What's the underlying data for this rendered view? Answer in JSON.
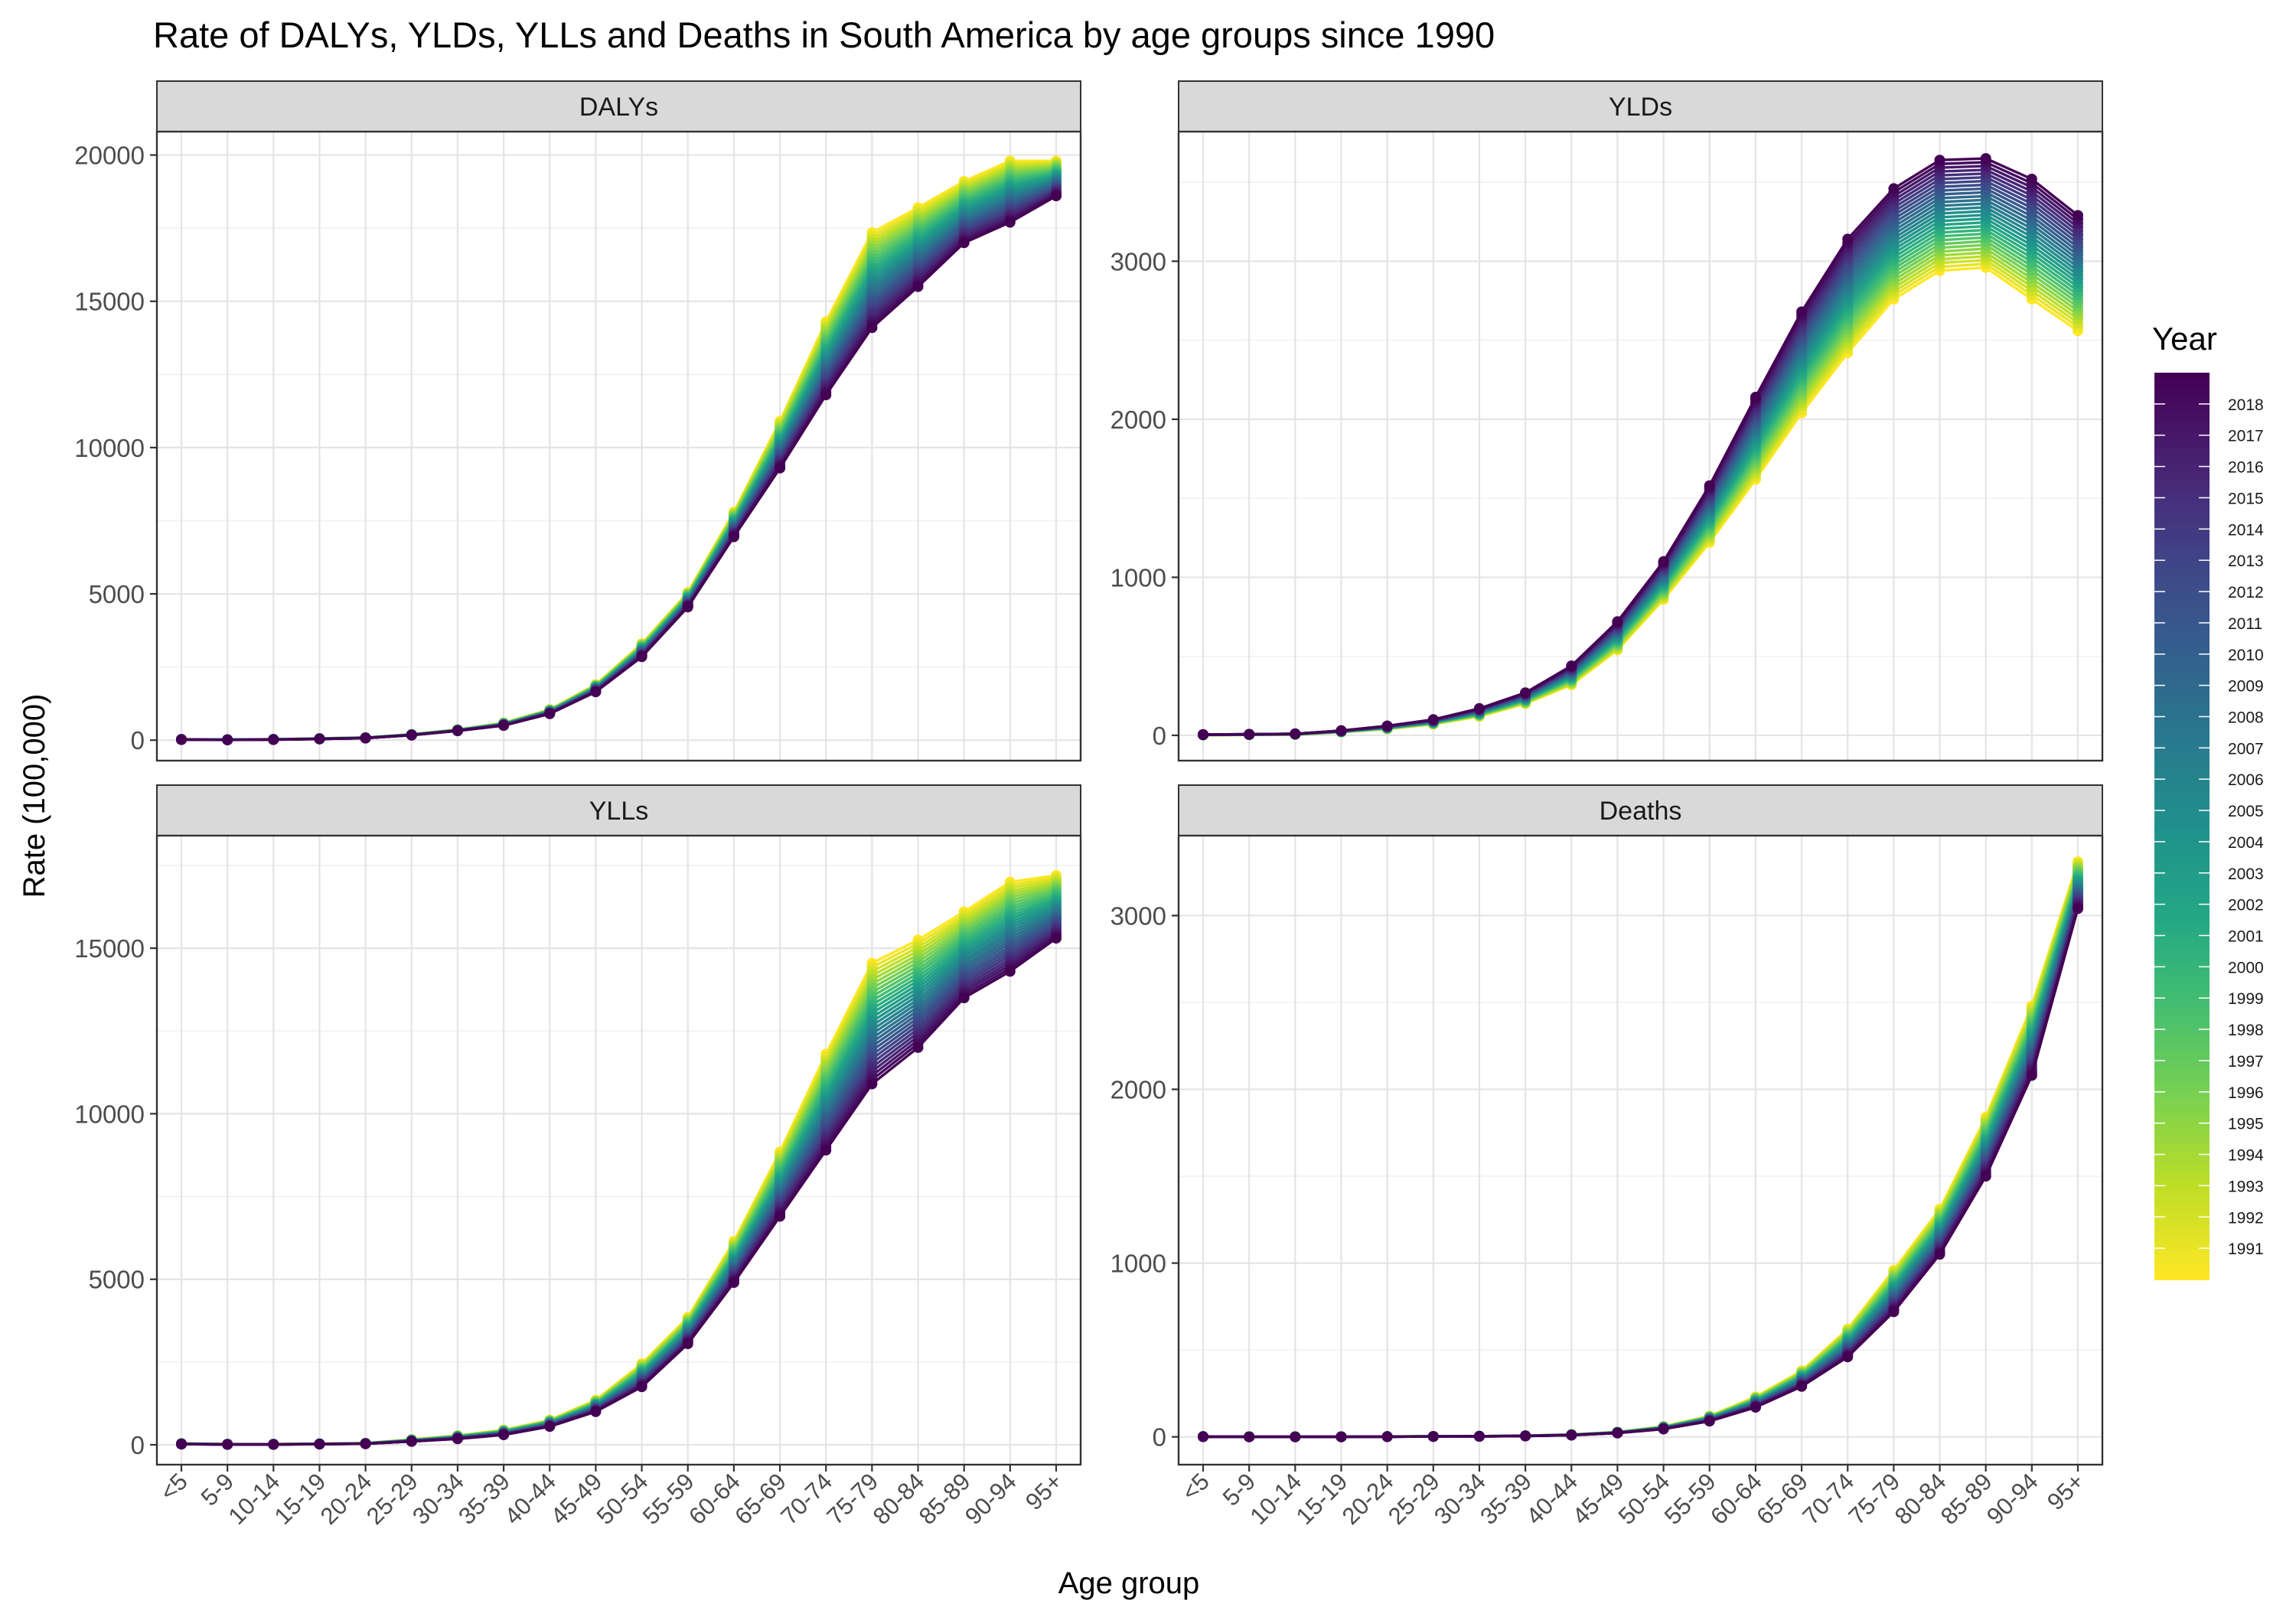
{
  "title": "Rate of DALYs, YLDs, YLLs and Deaths in South America by age groups since 1990",
  "xlabel": "Age group",
  "ylabel": "Rate (100,000)",
  "legend": {
    "title": "Year",
    "labels": [
      "2018",
      "2017",
      "2016",
      "2015",
      "2014",
      "2013",
      "2012",
      "2011",
      "2010",
      "2009",
      "2008",
      "2007",
      "2006",
      "2005",
      "2004",
      "2003",
      "2002",
      "2001",
      "2000",
      "1999",
      "1998",
      "1997",
      "1996",
      "1995",
      "1994",
      "1993",
      "1992",
      "1991"
    ],
    "year_min": 1990,
    "year_max": 2019,
    "placement": "right",
    "colormap": "viridis"
  },
  "chart_data": [
    {
      "panel": "DALYs",
      "type": "line",
      "categories": [
        "<5",
        "5-9",
        "10-14",
        "15-19",
        "20-24",
        "25-29",
        "30-34",
        "35-39",
        "40-44",
        "45-49",
        "50-54",
        "55-59",
        "60-64",
        "65-69",
        "70-74",
        "75-79",
        "80-84",
        "85-89",
        "90-94",
        "95+"
      ],
      "ylim": [
        -700,
        20800
      ],
      "yticks": [
        0,
        5000,
        10000,
        15000,
        20000
      ],
      "year_first": 1990,
      "year_last": 2019,
      "first_year_values": [
        30,
        20,
        30,
        60,
        90,
        200,
        360,
        590,
        1050,
        1900,
        3300,
        5050,
        7800,
        10900,
        14300,
        17350,
        18200,
        19100,
        19800,
        19800
      ],
      "last_year_values": [
        20,
        10,
        20,
        40,
        70,
        170,
        320,
        500,
        900,
        1650,
        2850,
        4550,
        6950,
        9300,
        11800,
        14100,
        15500,
        17000,
        17700,
        18600
      ]
    },
    {
      "panel": "YLDs",
      "type": "line",
      "categories": [
        "<5",
        "5-9",
        "10-14",
        "15-19",
        "20-24",
        "25-29",
        "30-34",
        "35-39",
        "40-44",
        "45-49",
        "50-54",
        "55-59",
        "60-64",
        "65-69",
        "70-74",
        "75-79",
        "80-84",
        "85-89",
        "90-94",
        "95+"
      ],
      "ylim": [
        -160,
        3820
      ],
      "yticks": [
        0,
        1000,
        2000,
        3000
      ],
      "year_first": 1990,
      "year_last": 2019,
      "first_year_values": [
        2,
        3,
        5,
        20,
        40,
        70,
        120,
        200,
        320,
        540,
        860,
        1220,
        1620,
        2040,
        2420,
        2760,
        2940,
        2960,
        2760,
        2560
      ],
      "last_year_values": [
        5,
        7,
        10,
        30,
        60,
        100,
        170,
        270,
        440,
        720,
        1100,
        1580,
        2140,
        2680,
        3140,
        3460,
        3640,
        3650,
        3520,
        3290
      ]
    },
    {
      "panel": "YLLs",
      "type": "line",
      "categories": [
        "<5",
        "5-9",
        "10-14",
        "15-19",
        "20-24",
        "25-29",
        "30-34",
        "35-39",
        "40-44",
        "45-49",
        "50-54",
        "55-59",
        "60-64",
        "65-69",
        "70-74",
        "75-79",
        "80-84",
        "85-89",
        "90-94",
        "95+"
      ],
      "ylim": [
        -600,
        18400
      ],
      "yticks": [
        0,
        5000,
        10000,
        15000
      ],
      "year_first": 1990,
      "year_last": 2019,
      "first_year_values": [
        40,
        20,
        20,
        30,
        50,
        160,
        280,
        450,
        750,
        1350,
        2450,
        3850,
        6150,
        8850,
        11800,
        14550,
        15250,
        16100,
        17000,
        17200
      ],
      "last_year_values": [
        20,
        10,
        10,
        20,
        30,
        100,
        180,
        300,
        550,
        1000,
        1750,
        3050,
        4900,
        6900,
        8900,
        10900,
        12000,
        13500,
        14300,
        15300
      ]
    },
    {
      "panel": "Deaths",
      "type": "line",
      "categories": [
        "<5",
        "5-9",
        "10-14",
        "15-19",
        "20-24",
        "25-29",
        "30-34",
        "35-39",
        "40-44",
        "45-49",
        "50-54",
        "55-59",
        "60-64",
        "65-69",
        "70-74",
        "75-79",
        "80-84",
        "85-89",
        "90-94",
        "95+"
      ],
      "ylim": [
        -160,
        3460
      ],
      "yticks": [
        0,
        1000,
        2000,
        3000
      ],
      "year_first": 1990,
      "year_last": 2019,
      "first_year_values": [
        2,
        1,
        1,
        1,
        2,
        3,
        4,
        7,
        13,
        28,
        60,
        120,
        230,
        380,
        620,
        960,
        1310,
        1840,
        2480,
        3310
      ],
      "last_year_values": [
        1,
        0,
        0,
        0,
        1,
        2,
        3,
        5,
        10,
        22,
        45,
        90,
        170,
        290,
        460,
        720,
        1050,
        1500,
        2080,
        3040
      ]
    }
  ]
}
